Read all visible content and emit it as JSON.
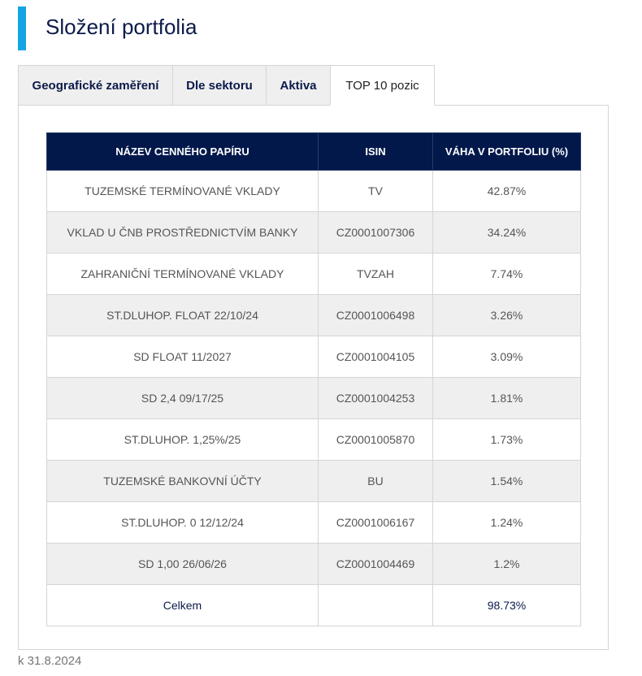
{
  "title": "Složení portfolia",
  "accent": "#15a5e5",
  "tabs": [
    "Geografické zaměření",
    "Dle sektoru",
    "Aktiva",
    "TOP 10 pozic"
  ],
  "active_tab": "TOP 10 pozic",
  "table": {
    "headers": [
      "NÁZEV CENNÉHO PAPÍRU",
      "ISIN",
      "VÁHA V PORTFOLIU (%)"
    ],
    "rows": [
      [
        "TUZEMSKÉ TERMÍNOVANÉ VKLADY",
        "TV",
        "42.87%"
      ],
      [
        "VKLAD U ČNB PROSTŘEDNICTVÍM BANKY",
        "CZ0001007306",
        "34.24%"
      ],
      [
        "ZAHRANIČNÍ TERMÍNOVANÉ VKLADY",
        "TVZAH",
        "7.74%"
      ],
      [
        "ST.DLUHOP. FLOAT 22/10/24",
        "CZ0001006498",
        "3.26%"
      ],
      [
        "SD FLOAT 11/2027",
        "CZ0001004105",
        "3.09%"
      ],
      [
        "SD 2,4 09/17/25",
        "CZ0001004253",
        "1.81%"
      ],
      [
        "ST.DLUHOP. 1,25%/25",
        "CZ0001005870",
        "1.73%"
      ],
      [
        "TUZEMSKÉ BANKOVNÍ ÚČTY",
        "BU",
        "1.54%"
      ],
      [
        "ST.DLUHOP. 0 12/12/24",
        "CZ0001006167",
        "1.24%"
      ],
      [
        "SD 1,00 26/06/26",
        "CZ0001004469",
        "1.2%"
      ]
    ],
    "total": [
      "Celkem",
      "",
      "98.73%"
    ]
  },
  "footer": "k 31.8.2024"
}
